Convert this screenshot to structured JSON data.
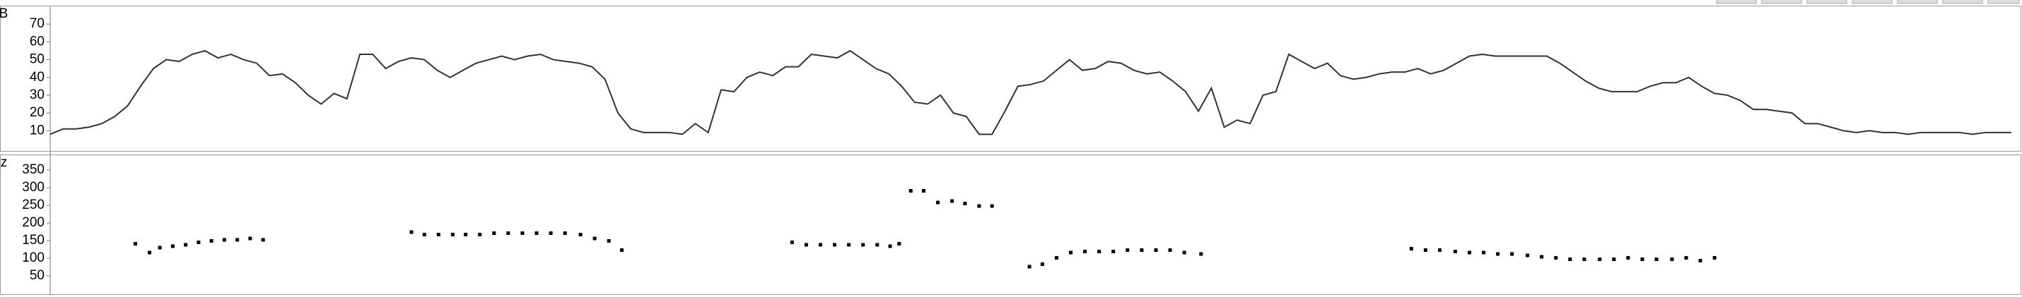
{
  "chart_data": [
    {
      "type": "line",
      "y_label": "dB",
      "color": "#333333",
      "xlim": [
        0,
        152.5
      ],
      "ylim": [
        -1,
        80
      ],
      "yticks": [
        10,
        20,
        30,
        40,
        50,
        60,
        70
      ],
      "values": [
        8,
        11,
        11,
        12,
        14,
        18,
        24,
        35,
        45,
        50,
        49,
        53,
        55,
        51,
        53,
        50,
        48,
        41,
        42,
        37,
        30,
        25,
        31,
        28,
        53,
        53,
        45,
        49,
        51,
        50,
        44,
        40,
        44,
        48,
        50,
        52,
        50,
        52,
        53,
        50,
        49,
        48,
        46,
        39,
        20,
        11,
        9,
        9,
        9,
        8,
        14,
        9,
        33,
        32,
        40,
        43,
        41,
        46,
        46,
        53,
        52,
        51,
        55,
        50,
        45,
        42,
        35,
        26,
        25,
        30,
        20,
        18,
        8,
        8,
        21,
        35,
        36,
        38,
        44,
        50,
        44,
        45,
        49,
        48,
        44,
        42,
        43,
        38,
        32,
        21,
        34,
        12,
        16,
        14,
        30,
        32,
        53,
        49,
        45,
        48,
        41,
        39,
        40,
        42,
        43,
        43,
        45,
        42,
        44,
        48,
        52,
        53,
        52,
        52,
        52,
        52,
        52,
        48,
        43,
        38,
        34,
        32,
        32,
        32,
        35,
        37,
        37,
        40,
        35,
        31,
        30,
        27,
        22,
        22,
        21,
        20,
        14,
        14,
        12,
        10,
        9,
        10,
        9,
        9,
        8,
        9,
        9,
        9,
        9,
        8,
        9,
        9,
        9
      ]
    },
    {
      "type": "scatter",
      "y_label": "Hz",
      "color": "#000000",
      "xlim": [
        0,
        152.5
      ],
      "ylim": [
        0,
        390
      ],
      "yticks": [
        50,
        100,
        150,
        200,
        250,
        300,
        350
      ],
      "x": [
        6.6,
        7.7,
        8.5,
        9.5,
        10.5,
        11.5,
        12.5,
        13.5,
        14.5,
        15.5,
        16.5,
        28,
        29,
        30.1,
        31.2,
        32.2,
        33.3,
        34.4,
        35.5,
        36.6,
        37.7,
        38.8,
        39.9,
        41.1,
        42.2,
        43.3,
        44.3,
        57.5,
        58.6,
        59.7,
        60.8,
        61.9,
        63,
        64.1,
        65.1,
        65.8,
        66.7,
        67.7,
        68.8,
        69.9,
        70.9,
        72,
        73,
        75.9,
        76.9,
        78,
        79.1,
        80.2,
        81.3,
        82.4,
        83.5,
        84.6,
        85.7,
        86.8,
        87.9,
        89.2,
        105.5,
        106.6,
        107.7,
        108.9,
        110,
        111.1,
        112.2,
        113.3,
        114.5,
        115.6,
        116.7,
        117.8,
        118.9,
        120.1,
        121.2,
        122.3,
        123.4,
        124.5,
        125.7,
        126.8,
        127.9,
        129
      ],
      "values": [
        141,
        116,
        130,
        134,
        138,
        145,
        149,
        152,
        152,
        156,
        152,
        174,
        167,
        167,
        167,
        167,
        167,
        171,
        171,
        171,
        171,
        171,
        171,
        167,
        156,
        149,
        123,
        145,
        138,
        138,
        138,
        138,
        138,
        138,
        134,
        141,
        291,
        291,
        258,
        262,
        255,
        248,
        248,
        76,
        83,
        101,
        116,
        119,
        119,
        119,
        123,
        123,
        123,
        123,
        116,
        112,
        127,
        123,
        123,
        119,
        116,
        116,
        112,
        112,
        108,
        104,
        101,
        97,
        97,
        97,
        97,
        101,
        97,
        97,
        97,
        101,
        93,
        101
      ]
    }
  ]
}
